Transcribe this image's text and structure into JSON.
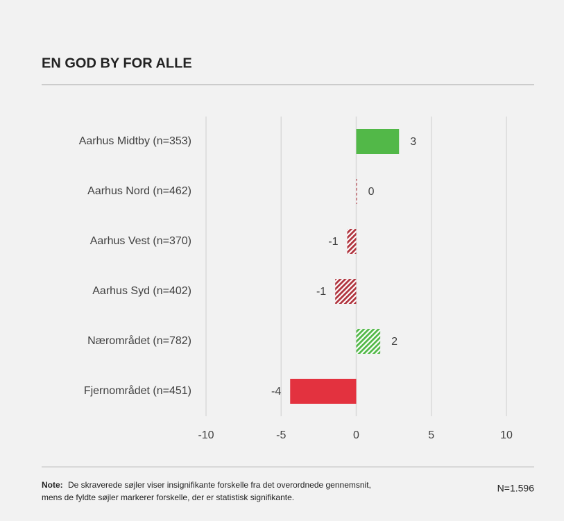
{
  "chart_data": {
    "type": "bar",
    "orientation": "horizontal",
    "title": "EN GOD BY FOR ALLE",
    "categories": [
      "Aarhus Midtby (n=353)",
      "Aarhus Nord (n=462)",
      "Aarhus Vest (n=370)",
      "Aarhus Syd (n=402)",
      "Nærområdet (n=782)",
      "Fjernområdet (n=451)"
    ],
    "values": [
      2.85,
      0.05,
      -0.6,
      -1.4,
      1.6,
      -4.4
    ],
    "value_labels": [
      "3",
      "0",
      "-1",
      "-1",
      "2",
      "-4"
    ],
    "colors": [
      "#52b848",
      "#b0343e",
      "#b0343e",
      "#b0343e",
      "#52b848",
      "#e3323f"
    ],
    "significant": [
      true,
      false,
      false,
      false,
      false,
      true
    ],
    "xlim": [
      -10,
      10
    ],
    "xticks": [
      -10,
      -5,
      0,
      5,
      10
    ],
    "grid": true,
    "note": {
      "label": "Note:",
      "lines": [
        "De skraverede søjler viser insignifikante forskelle fra det overordnede gennemsnit,",
        "mens de fyldte søjler markerer forskelle, der er statistisk signifikante."
      ]
    },
    "sample": "N=1.596"
  }
}
